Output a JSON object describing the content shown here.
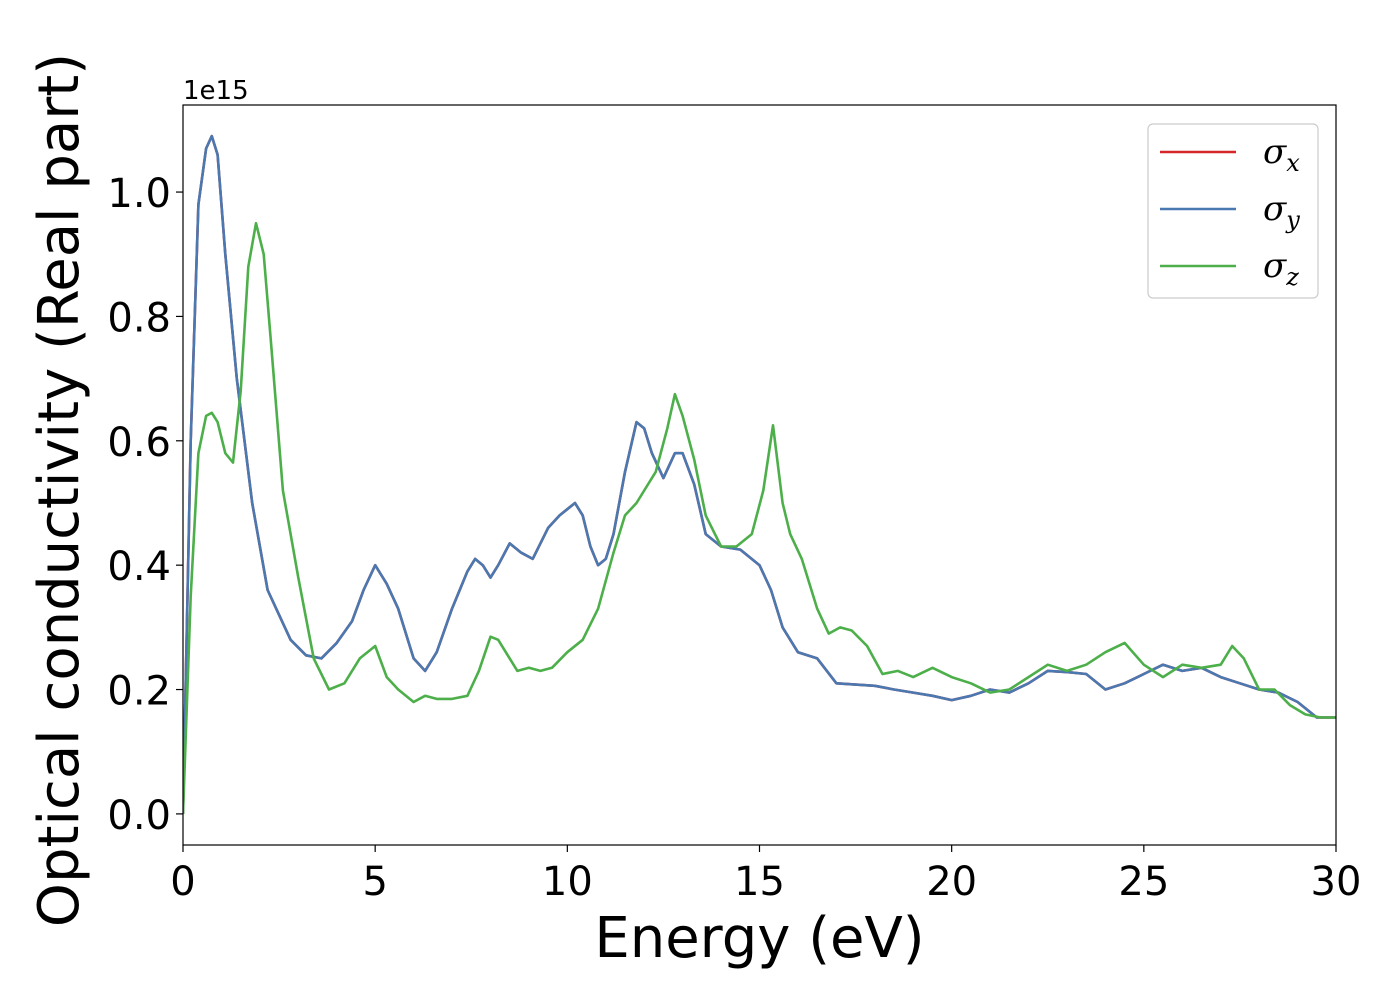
{
  "chart_data": {
    "type": "line",
    "xlabel": "Energy (eV)",
    "ylabel": "Optical conductivity (Real part)",
    "y_offset_label": "1e15",
    "xlim": [
      0,
      30
    ],
    "ylim": [
      -0.05,
      1.14
    ],
    "xticks": [
      0,
      5,
      10,
      15,
      20,
      25,
      30
    ],
    "xtick_labels": [
      "0",
      "5",
      "10",
      "15",
      "20",
      "25",
      "30"
    ],
    "yticks": [
      0.0,
      0.2,
      0.4,
      0.6,
      0.8,
      1.0
    ],
    "ytick_labels": [
      "0.0",
      "0.2",
      "0.4",
      "0.6",
      "0.8",
      "1.0"
    ],
    "grid": false,
    "legend_position": "top-right",
    "series": [
      {
        "name": "σx",
        "legend_base": "σ",
        "legend_sub": "x",
        "color": "#d62728",
        "x": [
          0,
          0.2,
          0.4,
          0.6,
          0.75,
          0.9,
          1.1,
          1.4,
          1.8,
          2.2,
          2.5,
          2.8,
          3.2,
          3.6,
          4.0,
          4.4,
          4.7,
          5.0,
          5.3,
          5.6,
          6.0,
          6.3,
          6.6,
          7.0,
          7.4,
          7.6,
          7.8,
          8.0,
          8.2,
          8.5,
          8.8,
          9.1,
          9.5,
          9.8,
          10.0,
          10.2,
          10.4,
          10.6,
          10.8,
          11.0,
          11.2,
          11.5,
          11.8,
          12.0,
          12.2,
          12.5,
          12.8,
          13.0,
          13.3,
          13.6,
          14.0,
          14.5,
          15.0,
          15.3,
          15.6,
          16.0,
          16.5,
          17.0,
          17.5,
          18.0,
          18.5,
          19.0,
          19.5,
          20.0,
          20.5,
          21.0,
          21.5,
          22.0,
          22.5,
          23.0,
          23.5,
          24.0,
          24.5,
          25.0,
          25.5,
          26.0,
          26.5,
          27.0,
          27.5,
          28.0,
          28.5,
          29.0,
          29.5,
          30.0
        ],
        "y": [
          0.0,
          0.6,
          0.98,
          1.07,
          1.09,
          1.06,
          0.9,
          0.7,
          0.5,
          0.36,
          0.32,
          0.28,
          0.255,
          0.25,
          0.275,
          0.31,
          0.36,
          0.4,
          0.37,
          0.33,
          0.25,
          0.23,
          0.26,
          0.33,
          0.39,
          0.41,
          0.4,
          0.38,
          0.4,
          0.435,
          0.42,
          0.41,
          0.46,
          0.48,
          0.49,
          0.5,
          0.48,
          0.43,
          0.4,
          0.41,
          0.45,
          0.55,
          0.63,
          0.62,
          0.58,
          0.54,
          0.58,
          0.58,
          0.53,
          0.45,
          0.43,
          0.425,
          0.4,
          0.36,
          0.3,
          0.26,
          0.25,
          0.21,
          0.208,
          0.206,
          0.2,
          0.195,
          0.19,
          0.183,
          0.19,
          0.2,
          0.195,
          0.21,
          0.23,
          0.228,
          0.225,
          0.2,
          0.21,
          0.225,
          0.24,
          0.23,
          0.235,
          0.22,
          0.21,
          0.2,
          0.195,
          0.18,
          0.155,
          0.155
        ]
      },
      {
        "name": "σy",
        "legend_base": "σ",
        "legend_sub": "y",
        "color": "#4a78b0",
        "x": [
          0,
          0.2,
          0.4,
          0.6,
          0.75,
          0.9,
          1.1,
          1.4,
          1.8,
          2.2,
          2.5,
          2.8,
          3.2,
          3.6,
          4.0,
          4.4,
          4.7,
          5.0,
          5.3,
          5.6,
          6.0,
          6.3,
          6.6,
          7.0,
          7.4,
          7.6,
          7.8,
          8.0,
          8.2,
          8.5,
          8.8,
          9.1,
          9.5,
          9.8,
          10.0,
          10.2,
          10.4,
          10.6,
          10.8,
          11.0,
          11.2,
          11.5,
          11.8,
          12.0,
          12.2,
          12.5,
          12.8,
          13.0,
          13.3,
          13.6,
          14.0,
          14.5,
          15.0,
          15.3,
          15.6,
          16.0,
          16.5,
          17.0,
          17.5,
          18.0,
          18.5,
          19.0,
          19.5,
          20.0,
          20.5,
          21.0,
          21.5,
          22.0,
          22.5,
          23.0,
          23.5,
          24.0,
          24.5,
          25.0,
          25.5,
          26.0,
          26.5,
          27.0,
          27.5,
          28.0,
          28.5,
          29.0,
          29.5,
          30.0
        ],
        "y": [
          0.0,
          0.6,
          0.98,
          1.07,
          1.09,
          1.06,
          0.9,
          0.7,
          0.5,
          0.36,
          0.32,
          0.28,
          0.255,
          0.25,
          0.275,
          0.31,
          0.36,
          0.4,
          0.37,
          0.33,
          0.25,
          0.23,
          0.26,
          0.33,
          0.39,
          0.41,
          0.4,
          0.38,
          0.4,
          0.435,
          0.42,
          0.41,
          0.46,
          0.48,
          0.49,
          0.5,
          0.48,
          0.43,
          0.4,
          0.41,
          0.45,
          0.55,
          0.63,
          0.62,
          0.58,
          0.54,
          0.58,
          0.58,
          0.53,
          0.45,
          0.43,
          0.425,
          0.4,
          0.36,
          0.3,
          0.26,
          0.25,
          0.21,
          0.208,
          0.206,
          0.2,
          0.195,
          0.19,
          0.183,
          0.19,
          0.2,
          0.195,
          0.21,
          0.23,
          0.228,
          0.225,
          0.2,
          0.21,
          0.225,
          0.24,
          0.23,
          0.235,
          0.22,
          0.21,
          0.2,
          0.195,
          0.18,
          0.155,
          0.155
        ]
      },
      {
        "name": "σz",
        "legend_base": "σ",
        "legend_sub": "z",
        "color": "#4daf4a",
        "x": [
          0,
          0.2,
          0.4,
          0.6,
          0.75,
          0.9,
          1.1,
          1.3,
          1.5,
          1.7,
          1.9,
          2.1,
          2.3,
          2.6,
          3.0,
          3.4,
          3.8,
          4.2,
          4.6,
          5.0,
          5.3,
          5.6,
          6.0,
          6.3,
          6.6,
          7.0,
          7.4,
          7.7,
          8.0,
          8.2,
          8.4,
          8.7,
          9.0,
          9.3,
          9.6,
          10.0,
          10.4,
          10.8,
          11.2,
          11.5,
          11.8,
          12.0,
          12.3,
          12.6,
          12.8,
          13.0,
          13.3,
          13.6,
          14.0,
          14.4,
          14.8,
          15.1,
          15.35,
          15.6,
          15.8,
          16.1,
          16.5,
          16.8,
          17.1,
          17.4,
          17.8,
          18.2,
          18.6,
          19.0,
          19.5,
          20.0,
          20.5,
          21.0,
          21.5,
          22.0,
          22.5,
          23.0,
          23.5,
          24.0,
          24.5,
          25.0,
          25.5,
          26.0,
          26.5,
          27.0,
          27.3,
          27.6,
          28.0,
          28.4,
          28.8,
          29.2,
          29.6,
          30.0
        ],
        "y": [
          0.0,
          0.35,
          0.58,
          0.64,
          0.645,
          0.63,
          0.58,
          0.565,
          0.68,
          0.88,
          0.95,
          0.9,
          0.75,
          0.52,
          0.38,
          0.25,
          0.2,
          0.21,
          0.25,
          0.27,
          0.22,
          0.2,
          0.18,
          0.19,
          0.185,
          0.185,
          0.19,
          0.23,
          0.285,
          0.28,
          0.26,
          0.23,
          0.235,
          0.23,
          0.235,
          0.26,
          0.28,
          0.33,
          0.42,
          0.48,
          0.5,
          0.52,
          0.55,
          0.62,
          0.675,
          0.64,
          0.57,
          0.48,
          0.43,
          0.43,
          0.45,
          0.52,
          0.625,
          0.5,
          0.45,
          0.41,
          0.33,
          0.29,
          0.3,
          0.295,
          0.27,
          0.225,
          0.23,
          0.22,
          0.235,
          0.22,
          0.21,
          0.195,
          0.2,
          0.22,
          0.24,
          0.23,
          0.24,
          0.26,
          0.275,
          0.24,
          0.22,
          0.24,
          0.235,
          0.24,
          0.27,
          0.25,
          0.2,
          0.2,
          0.175,
          0.16,
          0.155,
          0.155
        ]
      }
    ]
  }
}
